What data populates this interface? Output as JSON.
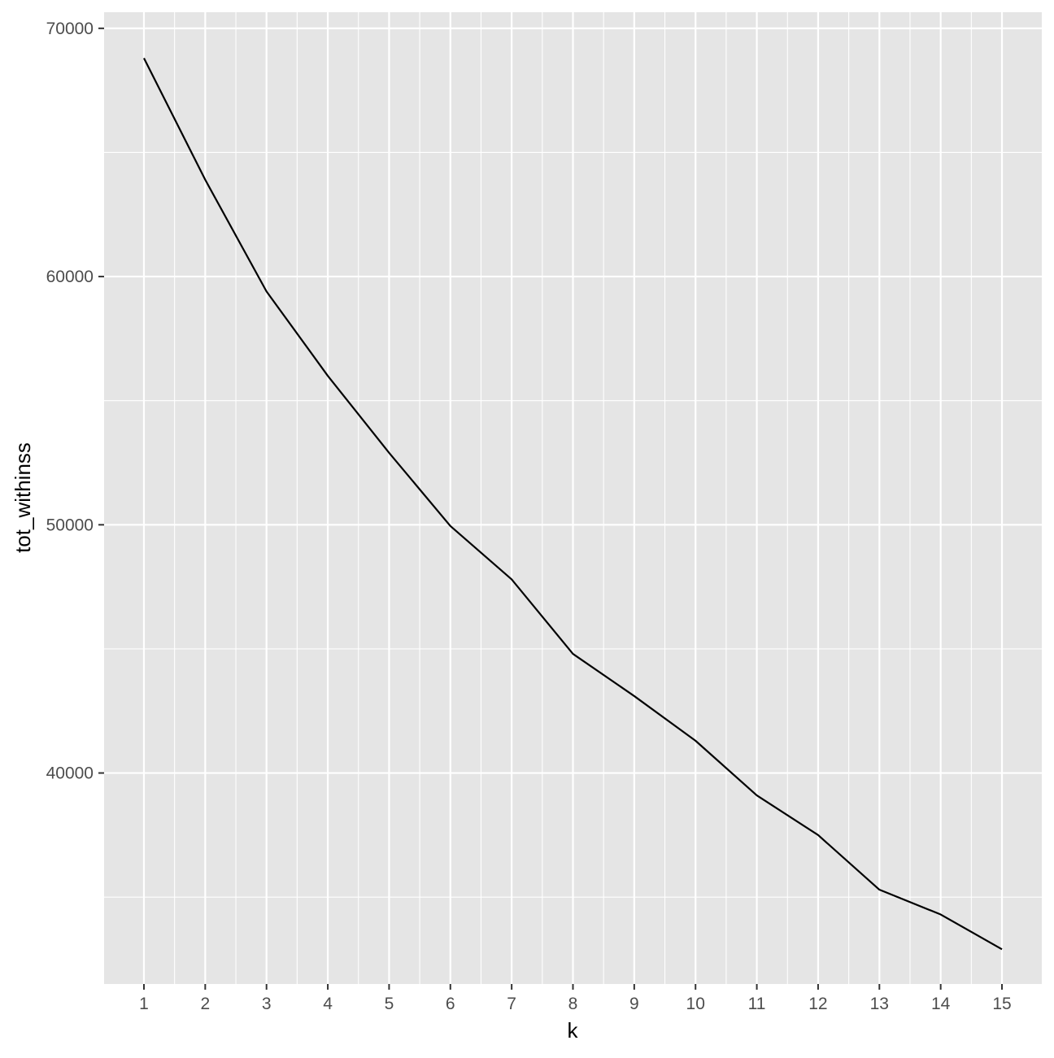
{
  "chart_data": {
    "type": "line",
    "title": "",
    "xlabel": "k",
    "ylabel": "tot_withinss",
    "x": [
      1,
      2,
      3,
      4,
      5,
      6,
      7,
      8,
      9,
      10,
      11,
      12,
      13,
      14,
      15
    ],
    "series": [
      {
        "values": [
          68800,
          63900,
          59400,
          56000,
          52900,
          49950,
          47800,
          44800,
          43100,
          41300,
          39100,
          37500,
          35300,
          34300,
          32900
        ]
      }
    ],
    "xticks": [
      "1",
      "2",
      "3",
      "4",
      "5",
      "6",
      "7",
      "8",
      "9",
      "10",
      "11",
      "12",
      "13",
      "14",
      "15"
    ],
    "yticks": [
      "40000",
      "50000",
      "60000",
      "70000"
    ],
    "xlim": [
      0.35,
      15.65
    ],
    "ylim": [
      31500,
      70650
    ],
    "grid": true,
    "legend": "none",
    "colors": {
      "panel": "#e5e5e5",
      "grid": "#ffffff",
      "line": "#000000",
      "tick": "#333333",
      "tick_label": "#4d4d4d"
    }
  }
}
